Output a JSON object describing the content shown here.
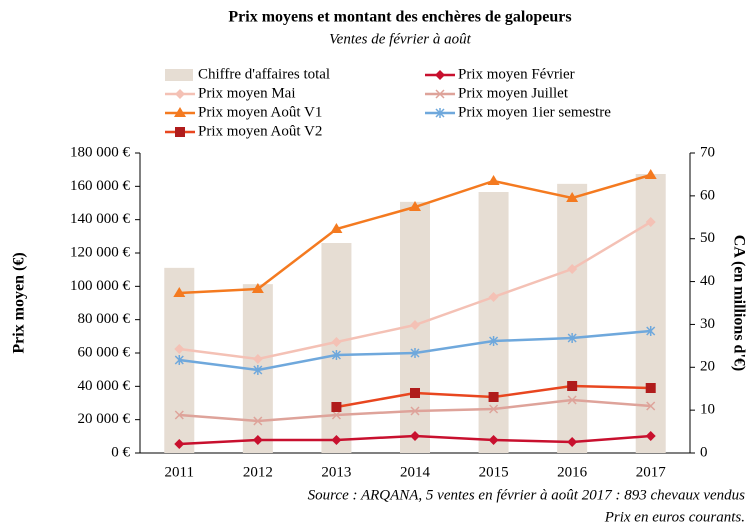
{
  "chart_data": {
    "type": "combo",
    "title": "Prix moyens et montant des enchères de galopeurs",
    "subtitle": "Ventes de février à août",
    "ylabel": "Prix moyen (€)",
    "y2label": "CA (en millions d'€)",
    "source": [
      "Source : ARQANA, 5 ventes en février à août 2017 : 893 chevaux vendus",
      "Prix en euros courants."
    ],
    "categories": [
      "2011",
      "2012",
      "2013",
      "2014",
      "2015",
      "2016",
      "2017"
    ],
    "ylim": [
      0,
      180000
    ],
    "yticks": [
      {
        "value": 0,
        "label": "0 €"
      },
      {
        "value": 20000,
        "label": "20 000 €"
      },
      {
        "value": 40000,
        "label": "40 000 €"
      },
      {
        "value": 60000,
        "label": "60 000 €"
      },
      {
        "value": 80000,
        "label": "80 000 €"
      },
      {
        "value": 100000,
        "label": "100 000 €"
      },
      {
        "value": 120000,
        "label": "120 000 €"
      },
      {
        "value": 140000,
        "label": "140 000 €"
      },
      {
        "value": 160000,
        "label": "160 000 €"
      },
      {
        "value": 180000,
        "label": "180 000 €"
      }
    ],
    "y2lim": [
      0,
      70
    ],
    "y2ticks": [
      0,
      10,
      20,
      30,
      40,
      50,
      60,
      70
    ],
    "series": [
      {
        "name": "Chiffre d'affaires total",
        "type": "bar",
        "axis": "y2",
        "color": "#e6ddd3",
        "values": [
          43.2,
          39.4,
          49,
          58.6,
          60.9,
          62.8,
          65.1
        ]
      },
      {
        "name": "Prix moyen Février",
        "type": "line",
        "color": "#c8102e",
        "marker": "diamond",
        "values": [
          5400,
          7800,
          7800,
          10200,
          7800,
          6600,
          10200
        ]
      },
      {
        "name": "Prix moyen Mai",
        "type": "line",
        "color": "#f4c1b5",
        "marker": "diamond",
        "values": [
          62400,
          56400,
          66600,
          76800,
          93600,
          110400,
          138600
        ]
      },
      {
        "name": "Prix moyen Juillet",
        "type": "line",
        "color": "#dea39a",
        "marker": "cross",
        "values": [
          22800,
          19200,
          22800,
          25200,
          26400,
          31800,
          28200
        ]
      },
      {
        "name": "Prix moyen Août V1",
        "type": "line",
        "color": "#f47a20",
        "marker": "triangle",
        "values": [
          96000,
          98400,
          134400,
          147600,
          163200,
          153000,
          166800
        ]
      },
      {
        "name": "Prix moyen 1ier semestre",
        "type": "line",
        "color": "#6fa8dc",
        "marker": "asterisk",
        "values": [
          55800,
          49800,
          58800,
          60000,
          67200,
          69000,
          73200
        ]
      },
      {
        "name": "Prix moyen Août V2",
        "type": "line",
        "color": "#e8461f",
        "marker": "square",
        "marker_color": "#b01c1c",
        "values": [
          null,
          null,
          27600,
          36000,
          33600,
          40200,
          39000
        ]
      }
    ]
  }
}
